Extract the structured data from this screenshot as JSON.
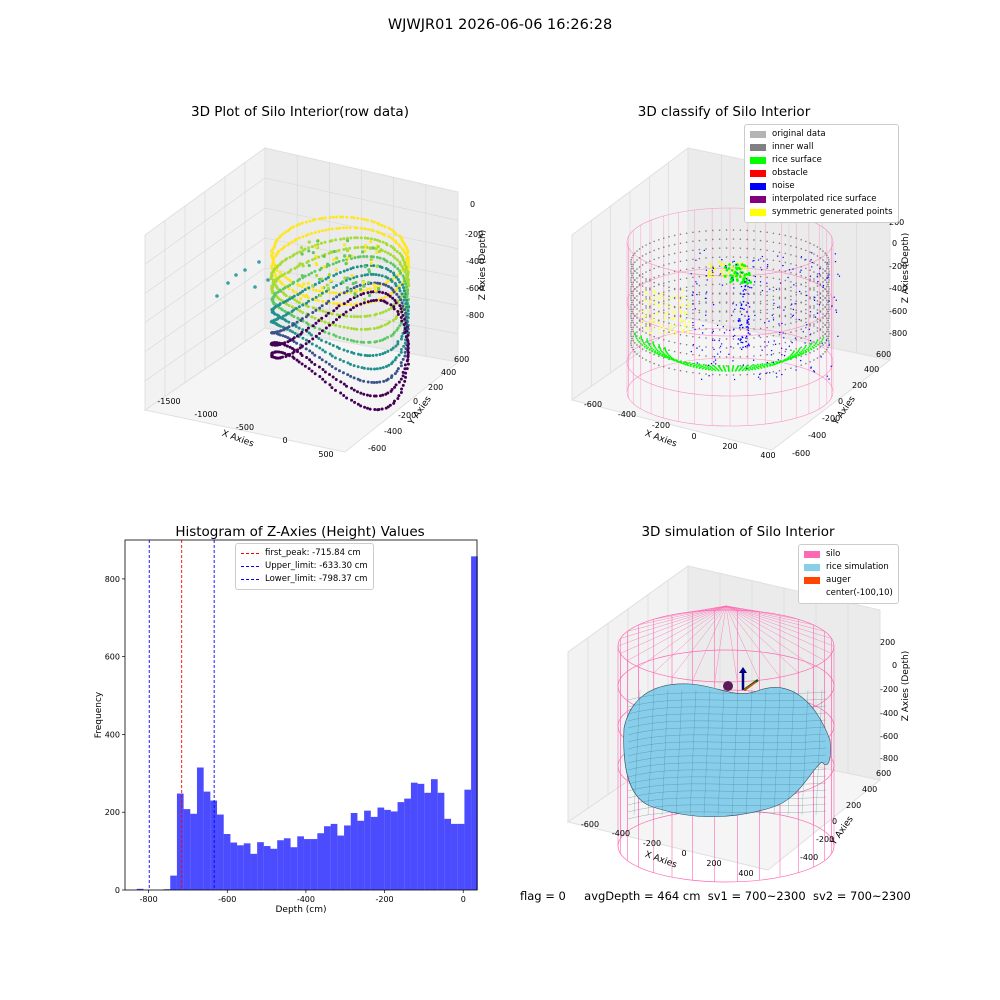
{
  "suptitle": "WJWJR01 2026-06-06 16:26:28",
  "footer": {
    "flag": "flag = 0",
    "avg_depth": "avgDepth = 464 cm",
    "sv1": "sv1 = 700~2300",
    "sv2": "sv2 = 700~2300"
  },
  "chart_data": [
    {
      "type": "scatter",
      "title": "3D Plot of Silo Interior(row data)",
      "xlabel": "X Axies",
      "ylabel": "Y Axies",
      "zlabel": "Z Axies (Depth)",
      "x_ticks": [
        "-1500",
        "-1000",
        "-500",
        "0",
        "500"
      ],
      "y_ticks": [
        "600",
        "400",
        "200",
        "0",
        "-200",
        "-400",
        "-600"
      ],
      "z_ticks": [
        "0",
        "-200",
        "-400",
        "-600",
        "-800"
      ],
      "colormap": "viridis"
    },
    {
      "type": "scatter",
      "title": "3D classify of Silo Interior",
      "xlabel": "X Axies",
      "ylabel": "Y Axies",
      "zlabel": "Z Axies (Depth)",
      "x_ticks": [
        "-600",
        "-400",
        "-200",
        "0",
        "200",
        "400"
      ],
      "y_ticks": [
        "600",
        "400",
        "200",
        "0",
        "-200",
        "-400",
        "-600"
      ],
      "z_ticks": [
        "200",
        "0",
        "-200",
        "-400",
        "-600",
        "-800"
      ],
      "legend": [
        {
          "label": "original data",
          "color": "#b4b4b4"
        },
        {
          "label": "inner wall",
          "color": "#808080"
        },
        {
          "label": "rice surface",
          "color": "#00ff00"
        },
        {
          "label": "obstacle",
          "color": "#ff0000"
        },
        {
          "label": "noise",
          "color": "#0000ff"
        },
        {
          "label": "interpolated rice surface",
          "color": "#800080"
        },
        {
          "label": "symmetric generated points",
          "color": "#ffff00"
        }
      ],
      "legend_position": "top-right"
    },
    {
      "type": "bar",
      "title": "Histogram of Z-Axies (Height) Values",
      "xlabel": "Depth (cm)",
      "ylabel": "Frequency",
      "xlim": [
        -860,
        35
      ],
      "ylim": [
        0,
        900
      ],
      "x_ticks": [
        -800,
        -600,
        -400,
        -200,
        0
      ],
      "y_ticks": [
        0,
        200,
        400,
        600,
        800
      ],
      "bin_width": 17,
      "bin_start": -830,
      "values": [
        3,
        0,
        0,
        0,
        2,
        37,
        248,
        208,
        196,
        315,
        253,
        230,
        194,
        144,
        122,
        115,
        120,
        93,
        123,
        113,
        106,
        128,
        133,
        110,
        138,
        131,
        131,
        146,
        164,
        170,
        140,
        166,
        198,
        178,
        204,
        188,
        212,
        206,
        202,
        226,
        235,
        276,
        273,
        250,
        285,
        250,
        183,
        170,
        170,
        258,
        858
      ],
      "bar_color": "#0000ff",
      "vlines": [
        {
          "label": "first_peak: -715.84 cm",
          "x": -715.84,
          "color": "#ff0000"
        },
        {
          "label": "Upper_limit: -633.30 cm",
          "x": -633.3,
          "color": "#0000ff"
        },
        {
          "label": "Lower_limit: -798.37 cm",
          "x": -798.37,
          "color": "#0000ff"
        }
      ],
      "legend_position": "top-center"
    },
    {
      "type": "surface",
      "title": "3D simulation of Silo Interior",
      "xlabel": "X Axies",
      "ylabel": "Y Axies",
      "zlabel": "Z Axies (Depth)",
      "x_ticks": [
        "-600",
        "-400",
        "-200",
        "0",
        "200",
        "400"
      ],
      "y_ticks": [
        "600",
        "400",
        "200",
        "0",
        "-200",
        "-400"
      ],
      "z_ticks": [
        "200",
        "0",
        "-200",
        "-400",
        "-600",
        "-800"
      ],
      "legend": [
        {
          "label": "silo",
          "color": "#ff69b4"
        },
        {
          "label": "rice simulation",
          "color": "#87ceeb"
        },
        {
          "label": "auger",
          "color": "#ff4500"
        },
        {
          "label": "center(-100,10)",
          "color": ""
        }
      ],
      "legend_position": "top-right"
    }
  ]
}
